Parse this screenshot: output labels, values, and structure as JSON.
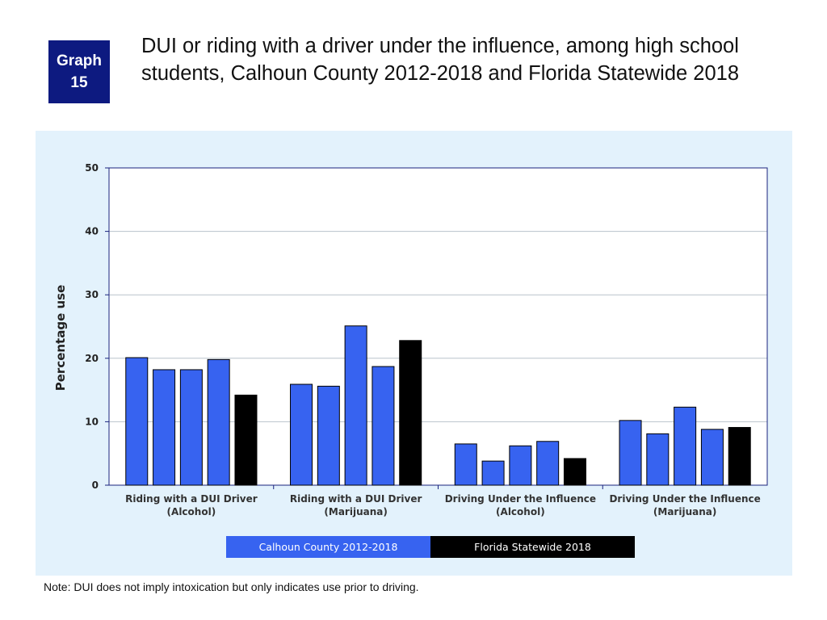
{
  "badge": {
    "line1": "Graph",
    "line2": "15"
  },
  "title": "DUI or riding with a driver under the influence, among high school students, Calhoun County 2012-2018 and Florida Statewide 2018",
  "note": "Note: DUI does not imply intoxication but only indicates use prior to driving.",
  "colors": {
    "county": "#3763f0",
    "state": "#000000",
    "panel": "#e3f2fc",
    "grid": "#b9c3cc",
    "axis": "#1a237e"
  },
  "chart_data": {
    "type": "bar",
    "title": "",
    "ylabel": "Percentage use",
    "xlabel": "",
    "ylim": [
      0,
      50
    ],
    "yticks": [
      0,
      10,
      20,
      30,
      40,
      50
    ],
    "grid": true,
    "categories": [
      {
        "line1": "Riding with a DUI Driver",
        "line2": "(Alcohol)"
      },
      {
        "line1": "Riding with a DUI Driver",
        "line2": "(Marijuana)"
      },
      {
        "line1": "Driving Under the Influence",
        "line2": "(Alcohol)"
      },
      {
        "line1": "Driving Under the Influence",
        "line2": "(Marijuana)"
      }
    ],
    "series": [
      {
        "group": "county",
        "values": [
          20.1,
          15.9,
          6.5,
          10.2
        ]
      },
      {
        "group": "county",
        "values": [
          18.2,
          15.6,
          3.8,
          8.1
        ]
      },
      {
        "group": "county",
        "values": [
          18.2,
          25.1,
          6.2,
          12.3
        ]
      },
      {
        "group": "county",
        "values": [
          19.8,
          18.7,
          6.9,
          8.8
        ]
      },
      {
        "group": "state",
        "values": [
          14.2,
          22.8,
          4.2,
          9.1
        ]
      }
    ],
    "legend": {
      "placement": "bottom",
      "entries": [
        {
          "name": "Calhoun County 2012-2018",
          "group": "county"
        },
        {
          "name": "Florida Statewide 2018",
          "group": "state"
        }
      ]
    }
  }
}
